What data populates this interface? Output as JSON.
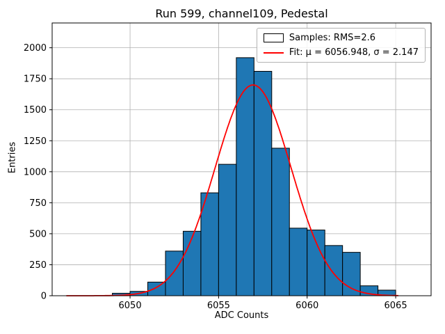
{
  "title": "Run 599, channel109, Pedestal",
  "chart_data": {
    "type": "bar",
    "title": "Run 599, channel109, Pedestal",
    "xlabel": "ADC Counts",
    "ylabel": "Entries",
    "xlim": [
      6045.6,
      6067.0
    ],
    "ylim": [
      0,
      2200
    ],
    "xticks": [
      6050,
      6055,
      6060,
      6065
    ],
    "yticks": [
      0,
      250,
      500,
      750,
      1000,
      1250,
      1500,
      1750,
      2000
    ],
    "grid": true,
    "legend_position": "upper right",
    "bar_color": "#1f77b4",
    "bar_edge_color": "#000000",
    "fit_color": "#ff0000",
    "grid_color": "#b0b0b0",
    "bin_start": 6049,
    "bin_width": 1,
    "counts": [
      20,
      35,
      110,
      360,
      520,
      830,
      1060,
      1920,
      1810,
      1190,
      545,
      530,
      405,
      350,
      80,
      45
    ],
    "fit": {
      "mu": 6056.948,
      "sigma": 2.147,
      "amplitude": 1700,
      "x_start": 6046.4,
      "x_end": 6065.2
    },
    "legend": [
      {
        "label": "Samples: RMS=2.6",
        "type": "patch",
        "color": "#1f77b4"
      },
      {
        "label": "Fit: μ = 6056.948, σ = 2.147",
        "type": "line",
        "color": "#ff0000"
      }
    ]
  }
}
